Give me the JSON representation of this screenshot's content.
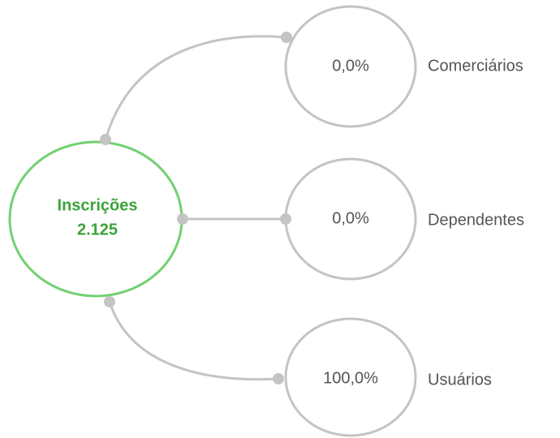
{
  "center": {
    "label": "Inscrições",
    "value": "2.125"
  },
  "nodes": [
    {
      "value": "0,0%",
      "label": "Comerciários"
    },
    {
      "value": "0,0%",
      "label": "Dependentes"
    },
    {
      "value": "100,0%",
      "label": "Usuários"
    }
  ]
}
